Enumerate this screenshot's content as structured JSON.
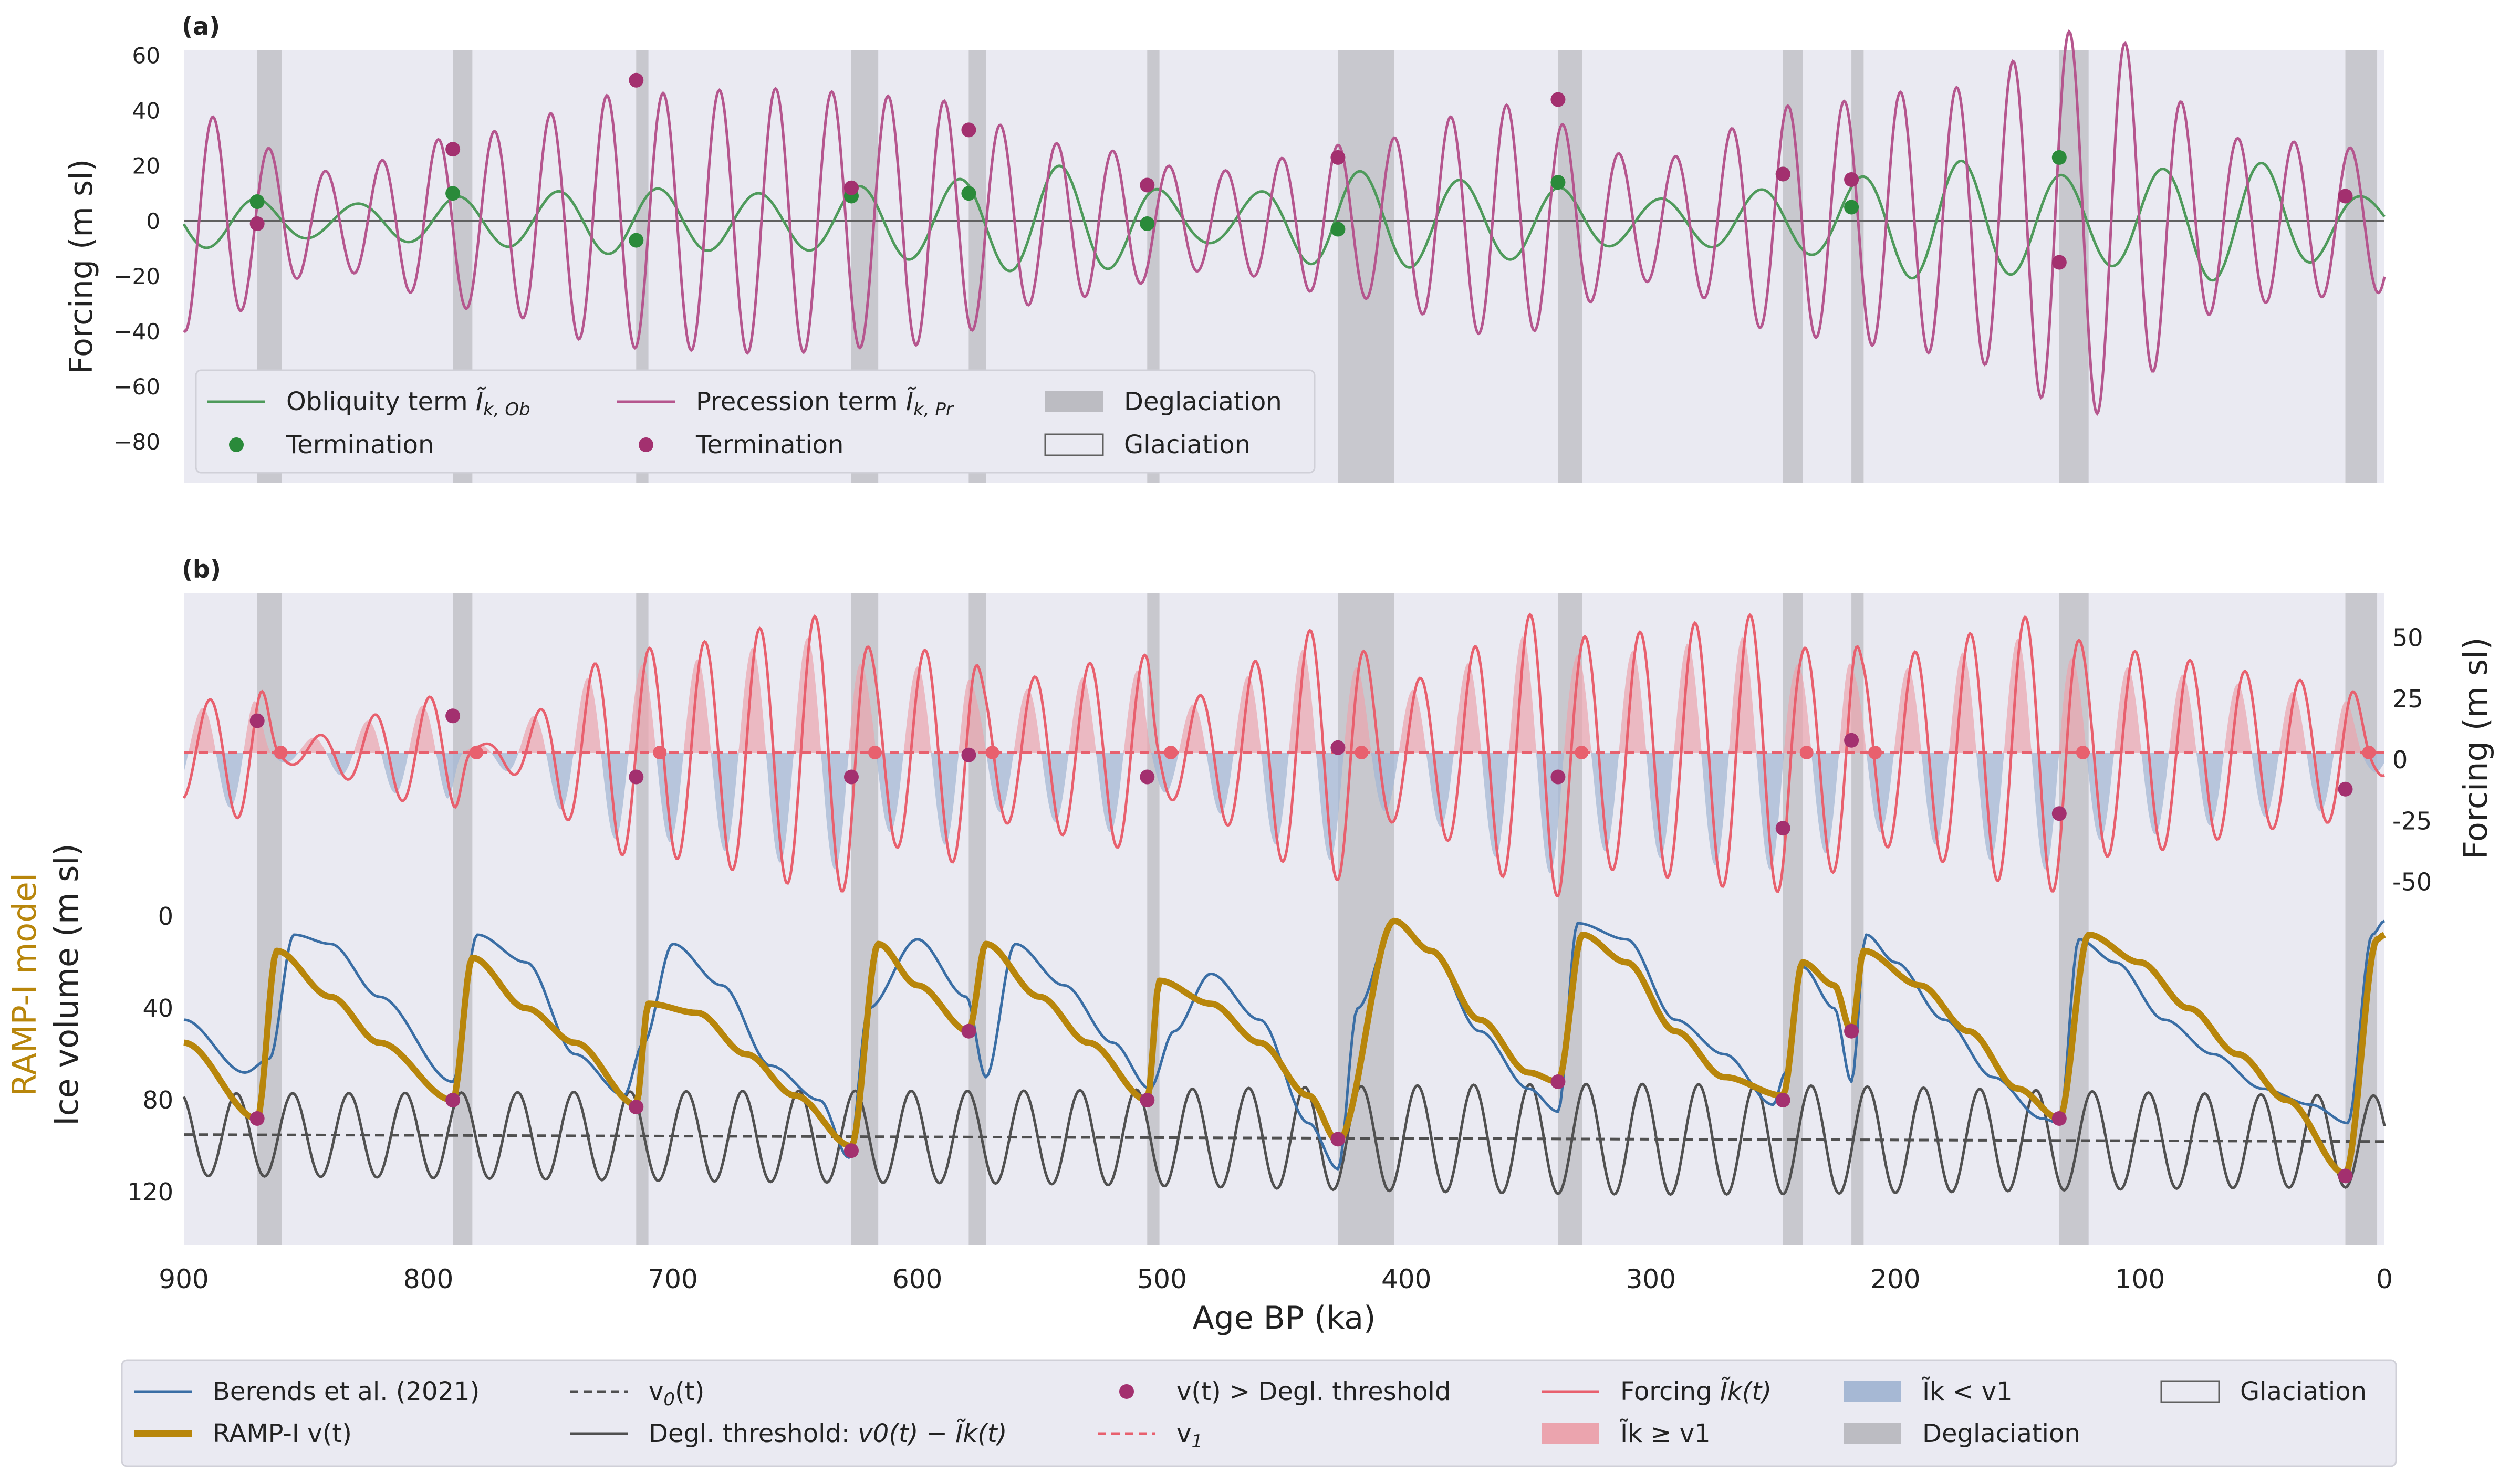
{
  "figure": {
    "x_axis_label": "Age BP (ka)",
    "colors": {
      "panel_bg": "#eaeaf2",
      "obliquity": "#4e9a5b",
      "precession": "#b5568e",
      "termination_green": "#2a8a3a",
      "termination_magenta": "#a3306f",
      "forcing": "#e8606e",
      "forcing_fill_pos": "#eba4ae",
      "forcing_fill_neg": "#a6b8d4",
      "berends": "#3a6ea5",
      "ramp": "#b8860b",
      "threshold": "#505050",
      "v0": "#505050",
      "v1": "#e8606e",
      "deglaciation": "#bcbcc2"
    }
  },
  "chart_data": [
    {
      "panel_label": "(a)",
      "type": "line",
      "ylabel": "Forcing (m sl)",
      "xlabel": "",
      "xlim": [
        900,
        0
      ],
      "ylim": [
        -95,
        62
      ],
      "x_ticks": [
        900,
        800,
        700,
        600,
        500,
        400,
        300,
        200,
        100,
        0
      ],
      "y_ticks": [
        60,
        40,
        20,
        0,
        -20,
        -40,
        -60,
        -80
      ],
      "y_tick_labels": [
        "60",
        "40",
        "20",
        "0",
        "−20",
        "−40",
        "−60",
        "−80"
      ],
      "deglaciation_intervals": [
        [
          870,
          860
        ],
        [
          790,
          782
        ],
        [
          715,
          710
        ],
        [
          627,
          616
        ],
        [
          579,
          572
        ],
        [
          506,
          501
        ],
        [
          428,
          405
        ],
        [
          338,
          328
        ],
        [
          246,
          238
        ],
        [
          218,
          213
        ],
        [
          133,
          121
        ],
        [
          16,
          3
        ]
      ],
      "series": [
        {
          "name": "Obliquity term",
          "name_subscript": "k, Ob",
          "color_key": "obliquity",
          "envelope": {
            "x": [
              900,
              840,
              780,
              720,
              660,
              600,
              540,
              480,
              420,
              360,
              300,
              240,
              180,
              120,
              60,
              0
            ],
            "amp": [
              10,
              6,
              9,
              12,
              10,
              14,
              20,
              8,
              18,
              14,
              8,
              12,
              22,
              16,
              22,
              8
            ]
          },
          "period": 41,
          "phase_ref": 870
        },
        {
          "name": "Precession term",
          "name_subscript": "k, Pr",
          "color_key": "precession",
          "envelope": {
            "x": [
              900,
              840,
              780,
              720,
              660,
              600,
              540,
              480,
              420,
              360,
              300,
              240,
              180,
              120,
              60,
              0
            ],
            "amp": [
              40,
              18,
              32,
              46,
              48,
              45,
              28,
              18,
              28,
              42,
              22,
              42,
              48,
              70,
              30,
              26
            ]
          },
          "period": 23,
          "phase_ref": 865
        }
      ],
      "terminations_obliquity": {
        "x": [
          870,
          790,
          715,
          627,
          579,
          506,
          428,
          338,
          246,
          218,
          133
        ],
        "y": [
          7,
          10,
          -7,
          9,
          10,
          -1,
          -3,
          14,
          17,
          5,
          23
        ]
      },
      "terminations_precession": {
        "x": [
          870,
          790,
          715,
          627,
          579,
          506,
          428,
          338,
          246,
          218,
          133,
          16
        ],
        "y": [
          -1,
          26,
          51,
          12,
          33,
          13,
          23,
          44,
          17,
          15,
          -15,
          9
        ]
      },
      "legend": {
        "position": "lower-left",
        "entries": [
          {
            "label": "Obliquity term",
            "math": "Ĩ",
            "sub": "k, Ob",
            "kind": "line",
            "color_key": "obliquity"
          },
          {
            "label": "Precession term",
            "math": "Ĩ",
            "sub": "k, Pr",
            "kind": "line",
            "color_key": "precession"
          },
          {
            "label": "Deglaciation",
            "kind": "patch",
            "color_key": "deglaciation"
          },
          {
            "label": "Termination",
            "kind": "dot",
            "color_key": "termination_green"
          },
          {
            "label": "Termination",
            "kind": "dot",
            "color_key": "termination_magenta"
          },
          {
            "label": "Glaciation",
            "kind": "patch-outline",
            "color_key": "panel_bg"
          }
        ]
      }
    },
    {
      "panel_label": "(b)",
      "type": "line",
      "ylabel_left_1": "RAMP-I model",
      "ylabel_left_2": "Ice volume (m sl)",
      "ylabel_right": "Forcing (m sl)",
      "xlabel": "Age BP (ka)",
      "xlim": [
        900,
        0
      ],
      "ice_ylim": [
        0,
        140
      ],
      "ice_y_ticks": [
        0,
        40,
        80,
        120
      ],
      "forcing_y_ticks": [
        50,
        25,
        0,
        -25,
        -50
      ],
      "forcing_y_tick_labels": [
        "50",
        "25",
        "0",
        "-25",
        "-50"
      ],
      "v1": 3,
      "v0": {
        "x": [
          900,
          0
        ],
        "y": [
          95,
          98
        ]
      },
      "forcing_points": {
        "x": [
          900,
          870,
          860,
          790,
          782,
          715,
          710,
          627,
          616,
          579,
          572,
          506,
          501,
          428,
          405,
          338,
          328,
          246,
          238,
          218,
          213,
          133,
          121,
          16,
          3
        ],
        "y": [
          -20,
          30,
          -5,
          25,
          -3,
          45,
          -45,
          60,
          -40,
          48,
          -30,
          42,
          -20,
          55,
          -30,
          62,
          -50,
          60,
          -45,
          55,
          -40,
          60,
          -45,
          30,
          10
        ]
      },
      "berends": {
        "x": [
          900,
          875,
          865,
          855,
          840,
          820,
          790,
          780,
          760,
          740,
          720,
          712,
          700,
          680,
          660,
          640,
          628,
          620,
          600,
          580,
          572,
          560,
          540,
          520,
          505,
          495,
          480,
          460,
          440,
          428,
          420,
          405,
          390,
          370,
          350,
          338,
          330,
          310,
          290,
          270,
          250,
          245,
          238,
          225,
          218,
          212,
          200,
          180,
          160,
          140,
          133,
          125,
          110,
          90,
          70,
          50,
          30,
          15,
          5,
          0
        ],
        "y": [
          45,
          68,
          62,
          8,
          12,
          35,
          72,
          8,
          20,
          60,
          78,
          55,
          12,
          30,
          65,
          80,
          105,
          40,
          10,
          35,
          70,
          12,
          30,
          55,
          75,
          50,
          25,
          45,
          90,
          110,
          40,
          2,
          15,
          50,
          75,
          85,
          3,
          10,
          45,
          60,
          82,
          68,
          22,
          40,
          72,
          8,
          20,
          45,
          70,
          88,
          90,
          10,
          20,
          45,
          60,
          75,
          82,
          90,
          8,
          2
        ]
      },
      "ramp": {
        "x": [
          900,
          870,
          862,
          840,
          820,
          790,
          782,
          760,
          740,
          715,
          710,
          690,
          670,
          650,
          627,
          616,
          600,
          579,
          572,
          550,
          530,
          506,
          501,
          480,
          460,
          440,
          428,
          405,
          390,
          370,
          350,
          338,
          328,
          310,
          290,
          270,
          246,
          238,
          225,
          218,
          213,
          190,
          170,
          150,
          133,
          121,
          100,
          80,
          60,
          40,
          16,
          3,
          0
        ],
        "y": [
          55,
          88,
          15,
          35,
          55,
          80,
          18,
          40,
          55,
          82,
          38,
          42,
          60,
          78,
          100,
          12,
          30,
          50,
          12,
          35,
          55,
          80,
          28,
          38,
          55,
          78,
          98,
          2,
          15,
          45,
          68,
          72,
          8,
          20,
          50,
          70,
          78,
          20,
          30,
          50,
          15,
          30,
          50,
          75,
          88,
          8,
          20,
          40,
          60,
          80,
          112,
          10,
          8
        ]
      },
      "threshold_note": "Degl. threshold = v0(t) − Ĩk(t)",
      "exceed_points": {
        "x": [
          870,
          790,
          715,
          627,
          579,
          506,
          428,
          338,
          246,
          218,
          133,
          16
        ],
        "y": [
          88,
          80,
          83,
          102,
          50,
          80,
          97,
          72,
          80,
          50,
          88,
          113
        ]
      },
      "forcing_points_at_exceed": {
        "x": [
          870,
          790,
          715,
          627,
          579,
          506,
          428,
          338,
          246,
          218,
          133,
          16
        ],
        "y": [
          16,
          18,
          -7,
          -7,
          2,
          -7,
          5,
          -7,
          -28,
          8,
          -22,
          -12
        ]
      },
      "deglaciation_intervals": [
        [
          870,
          860
        ],
        [
          790,
          782
        ],
        [
          715,
          710
        ],
        [
          627,
          616
        ],
        [
          579,
          572
        ],
        [
          506,
          501
        ],
        [
          428,
          405
        ],
        [
          338,
          328
        ],
        [
          246,
          238
        ],
        [
          218,
          213
        ],
        [
          133,
          121
        ],
        [
          16,
          3
        ]
      ],
      "legend": {
        "position": "below-plot",
        "entries": [
          {
            "label": "Berends et al. (2021)",
            "kind": "line",
            "color_key": "berends"
          },
          {
            "label": "RAMP-I v(t)",
            "kind": "line-thick",
            "color_key": "ramp"
          },
          {
            "label": "v",
            "sub": "0",
            "suffix": "(t)",
            "kind": "dashed",
            "color_key": "v0"
          },
          {
            "label": "Degl. threshold: ",
            "math": "v0(t) − Ĩk(t)",
            "kind": "line",
            "color_key": "threshold"
          },
          {
            "label": "v(t) > Degl. threshold",
            "kind": "dot",
            "color_key": "termination_magenta"
          },
          {
            "label": "v",
            "sub": "1",
            "kind": "dashed",
            "color_key": "v1"
          },
          {
            "label": "Forcing ",
            "math": "Ĩk(t)",
            "kind": "line",
            "color_key": "forcing"
          },
          {
            "label": "Ĩk ≥ v1",
            "kind": "patch",
            "color_key": "forcing_fill_pos"
          },
          {
            "label": "Ĩk < v1",
            "kind": "patch",
            "color_key": "forcing_fill_neg"
          },
          {
            "label": "Deglaciation",
            "kind": "patch",
            "color_key": "deglaciation"
          },
          {
            "label": "Glaciation",
            "kind": "patch-outline",
            "color_key": "panel_bg"
          }
        ]
      }
    }
  ]
}
